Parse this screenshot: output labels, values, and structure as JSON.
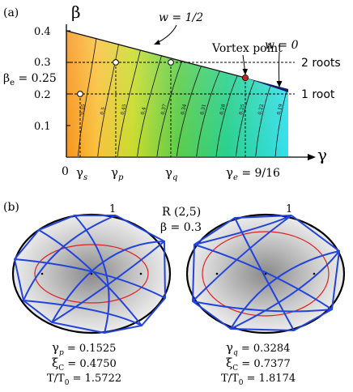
{
  "panel_a": {
    "label": "(a)",
    "y_axis_label": "β",
    "x_axis_label": "γ",
    "y_ticks": [
      "0.4",
      "0.3",
      "0.2",
      "0.1"
    ],
    "beta_e_label": "βe = 0.25",
    "beta_e_name": "β",
    "beta_e_sub": "e",
    "beta_e_value": " = 0.25",
    "x_tick_0": "0",
    "gamma_s": {
      "base": "γ",
      "sub": "s"
    },
    "gamma_p": {
      "base": "γ",
      "sub": "p"
    },
    "gamma_q": {
      "base": "γ",
      "sub": "q"
    },
    "gamma_e": {
      "base": "γ",
      "sub": "e",
      "rest": " = 9/16"
    },
    "w_half_label": "w = 1/2",
    "w_zero_label": "w = 0",
    "vortex_label": "Vortex point",
    "two_roots_label": "2 roots",
    "one_root_label": "1 root",
    "contour_labels": [
      "0.55",
      "0.5",
      "0.45",
      "0.4",
      "0.37",
      "0.34",
      "0.31",
      "0.28",
      "0.25",
      "0.22",
      "0.19"
    ],
    "colors": {
      "boundary": "#222222",
      "vortex_point": "#d62020",
      "upper_edge": "#1a1a6a"
    }
  },
  "panel_b": {
    "label": "(b)",
    "resonance_label": "R (2,5)",
    "beta_label": "β = 0.3",
    "left_orbit": {
      "start_label": "1",
      "gamma": {
        "base": "γ",
        "sub": "p",
        "value": " = 0.1525"
      },
      "xi": {
        "base": "ξ",
        "sub": "C",
        "value": " = 0.4750"
      },
      "period": {
        "base": "T/T",
        "sub": "0",
        "value": " = 1.5722"
      }
    },
    "right_orbit": {
      "start_label": "1",
      "gamma": {
        "base": "γ",
        "sub": "q",
        "value": " = 0.3284"
      },
      "xi": {
        "base": "ξ",
        "sub": "C",
        "value": " = 0.7377"
      },
      "period": {
        "base": "T/T",
        "sub": "0",
        "value": " = 1.8174"
      }
    },
    "colors": {
      "orbit": "#2244dd",
      "caustic": "#e02020",
      "billiard": "#000000"
    }
  }
}
